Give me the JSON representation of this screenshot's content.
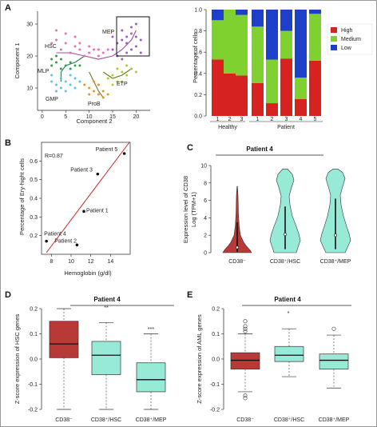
{
  "figure": {
    "colors": {
      "red": "#d7231f",
      "green": "#7ed12f",
      "blue": "#1e3fc9",
      "teal": "#97ead6",
      "brick": "#b83a36",
      "line": "#c62828"
    },
    "panelA": {
      "label": "A",
      "scatter": {
        "xlabel": "Component 2",
        "ylabel": "Component 1",
        "xticks": [
          "0",
          "5",
          "10",
          "15",
          "20"
        ],
        "yticks": [
          "10",
          "20",
          "30"
        ],
        "xlim": [
          -1,
          23
        ],
        "ylim": [
          3,
          34
        ],
        "populations": [
          {
            "name": "HSC",
            "color": "#e46fbd"
          },
          {
            "name": "MEP",
            "color": "#a05ad8"
          },
          {
            "name": "MLP",
            "color": "#2ea24f"
          },
          {
            "name": "GMP",
            "color": "#57c7e0"
          },
          {
            "name": "ProB",
            "color": "#d29d3a"
          },
          {
            "name": "ETP",
            "color": "#b5c928"
          }
        ]
      },
      "bar": {
        "ylabel": "Percentage of cells",
        "yticks": [
          "0.0",
          "0.2",
          "0.4",
          "0.6",
          "0.8",
          "1.0"
        ],
        "categories": [
          "1",
          "2",
          "3",
          "1",
          "2",
          "3",
          "4",
          "5"
        ],
        "groups": [
          "Healthy",
          "Patient"
        ],
        "legend": [
          "High",
          "Medium",
          "Low"
        ]
      }
    },
    "panelB": {
      "label": "B",
      "r_text": "R=0.87",
      "xlabel": "Hemoglobin (g/dl)",
      "ylabel": "Percentage of Ery-hight cells",
      "xticks": [
        "8",
        "10",
        "12",
        "14"
      ],
      "yticks": [
        "0.2",
        "0.3",
        "0.4",
        "0.5",
        "0.6"
      ],
      "points": [
        "Patient 5",
        "Patient 3",
        "Patient 1",
        "Patient 2",
        "Patient 4"
      ]
    },
    "panelC": {
      "label": "C",
      "title": "Patient 4",
      "ylabel_top": "Expression level of CD38",
      "ylabel_bottom": "Log (TPM+1)",
      "yticks": [
        "0",
        "2",
        "4",
        "6",
        "8",
        "10"
      ],
      "categories": [
        "CD38⁻",
        "CD38⁺/HSC",
        "CD38⁺/MEP"
      ]
    },
    "panelD": {
      "label": "D",
      "title": "Patient 4",
      "ylabel": "Z-score expression of HSC genes",
      "yticks": [
        "-0.2",
        "-0.1",
        "0.0",
        "0.1",
        "0.2"
      ],
      "categories": [
        "CD38⁻",
        "CD38⁺/HSC",
        "CD38⁺/MEP"
      ],
      "sig": [
        "**",
        "***"
      ]
    },
    "panelE": {
      "label": "E",
      "title": "Patient 4",
      "ylabel": "Z-score expression of AML genes",
      "yticks": [
        "-0.2",
        "-0.1",
        "0.0",
        "0.1",
        "0.2"
      ],
      "categories": [
        "CD38⁻",
        "CD38⁺/HSC",
        "CD38⁺/MEP"
      ],
      "sig": [
        "*"
      ]
    }
  },
  "chart_data": [
    {
      "type": "bar",
      "stacked": true,
      "categories": [
        "1",
        "2",
        "3",
        "1",
        "2",
        "3",
        "4",
        "5"
      ],
      "groups": [
        {
          "name": "Healthy",
          "categories": [
            "1",
            "2",
            "3"
          ]
        },
        {
          "name": "Patient",
          "categories": [
            "1",
            "2",
            "3",
            "4",
            "5"
          ]
        }
      ],
      "series": [
        {
          "name": "High",
          "values": [
            0.53,
            0.4,
            0.38,
            0.31,
            0.12,
            0.54,
            0.16,
            0.52
          ]
        },
        {
          "name": "Medium",
          "values": [
            0.37,
            0.6,
            0.57,
            0.53,
            0.41,
            0.26,
            0.2,
            0.44
          ]
        },
        {
          "name": "Low",
          "values": [
            0.1,
            0.0,
            0.05,
            0.16,
            0.47,
            0.2,
            0.64,
            0.04
          ]
        }
      ],
      "ylabel": "Percentage of cells",
      "ylim": [
        0,
        1
      ],
      "legend": "top-right"
    },
    {
      "type": "scatter",
      "xlabel": "Hemoglobin (g/dl)",
      "ylabel": "Percentage of Ery-hight cells",
      "points": [
        {
          "label": "Patient 5",
          "x": 15.4,
          "y": 0.64
        },
        {
          "label": "Patient 3",
          "x": 12.7,
          "y": 0.53
        },
        {
          "label": "Patient 1",
          "x": 11.3,
          "y": 0.33
        },
        {
          "label": "Patient 2",
          "x": 10.6,
          "y": 0.15
        },
        {
          "label": "Patient 4",
          "x": 7.5,
          "y": 0.17
        }
      ],
      "annotation": "R=0.87",
      "xlim": [
        7,
        16
      ],
      "ylim": [
        0.1,
        0.7
      ]
    },
    {
      "type": "violin",
      "title": "Patient 4",
      "categories": [
        "CD38⁻",
        "CD38⁺/HSC",
        "CD38⁺/MEP"
      ],
      "medians": [
        0.6,
        2.1,
        2.0
      ],
      "ymax": [
        7.6,
        9.6,
        9.6
      ],
      "ylim": [
        0,
        10
      ]
    },
    {
      "type": "box",
      "title": "Patient 4",
      "categories": [
        "CD38⁻",
        "CD38⁺/HSC",
        "CD38⁺/MEP"
      ],
      "q1": [
        0.005,
        -0.062,
        -0.13
      ],
      "median": [
        0.06,
        0.015,
        -0.082
      ],
      "q3": [
        0.15,
        0.07,
        -0.015
      ],
      "whisker_low": [
        -0.2,
        -0.2,
        -0.2
      ],
      "whisker_high": [
        0.2,
        0.145,
        0.1
      ],
      "ylabel": "Z-score expression of HSC genes",
      "ylim": [
        -0.2,
        0.2
      ]
    },
    {
      "type": "box",
      "title": "Patient 4",
      "categories": [
        "CD38⁻",
        "CD38⁺/HSC",
        "CD38⁺/MEP"
      ],
      "q1": [
        -0.04,
        -0.01,
        -0.04
      ],
      "median": [
        -0.005,
        0.015,
        -0.005
      ],
      "q3": [
        0.025,
        0.05,
        0.02
      ],
      "whisker_low": [
        -0.13,
        -0.07,
        -0.115
      ],
      "whisker_high": [
        0.1,
        0.12,
        0.095
      ],
      "ylabel": "Z-score expression of AML genes",
      "ylim": [
        -0.2,
        0.2
      ]
    }
  ]
}
